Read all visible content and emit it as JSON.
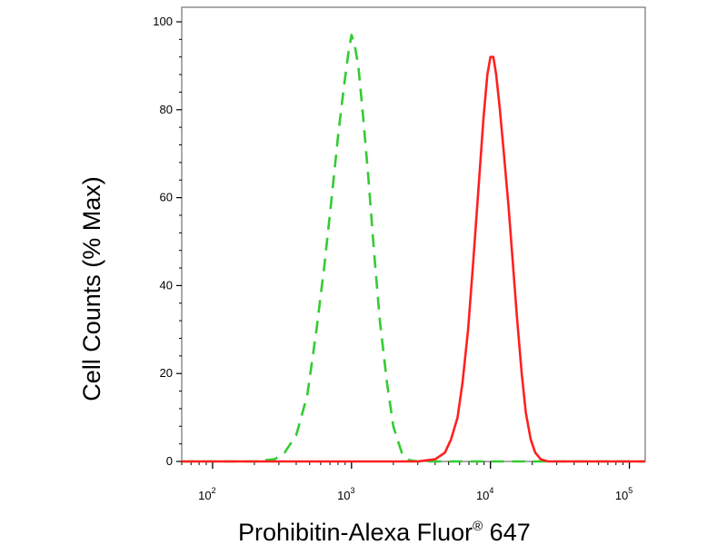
{
  "chart_data": {
    "type": "line",
    "xlabel": "Prohibitin-Alexa Fluor",
    "xlabel_superscript": "®",
    "xlabel_suffix": " 647",
    "ylabel": "Cell Counts (% Max)",
    "xscale": "log",
    "xlim": [
      60,
      130000
    ],
    "ylim": [
      0,
      100
    ],
    "x_ticks": [
      {
        "base": "10",
        "exp": "2",
        "value": 100
      },
      {
        "base": "10",
        "exp": "3",
        "value": 1000
      },
      {
        "base": "10",
        "exp": "4",
        "value": 10000
      },
      {
        "base": "10",
        "exp": "5",
        "value": 100000
      }
    ],
    "y_ticks": [
      {
        "label": "0",
        "value": 0
      },
      {
        "label": "20",
        "value": 20
      },
      {
        "label": "40",
        "value": 40
      },
      {
        "label": "60",
        "value": 60
      },
      {
        "label": "80",
        "value": 80
      },
      {
        "label": "100",
        "value": 100
      }
    ],
    "grid": false,
    "legend": "none",
    "series": [
      {
        "style": "dashed",
        "color": "#33cc33",
        "points": [
          [
            60,
            0
          ],
          [
            200,
            0
          ],
          [
            280,
            0.5
          ],
          [
            330,
            2
          ],
          [
            400,
            6
          ],
          [
            480,
            15
          ],
          [
            560,
            30
          ],
          [
            640,
            45
          ],
          [
            720,
            60
          ],
          [
            800,
            74
          ],
          [
            880,
            85
          ],
          [
            950,
            93
          ],
          [
            1000,
            97
          ],
          [
            1050,
            95
          ],
          [
            1120,
            90
          ],
          [
            1200,
            80
          ],
          [
            1320,
            65
          ],
          [
            1450,
            48
          ],
          [
            1600,
            32
          ],
          [
            1800,
            18
          ],
          [
            2000,
            8
          ],
          [
            2300,
            2
          ],
          [
            2600,
            0.3
          ],
          [
            3000,
            0
          ],
          [
            130000,
            0
          ]
        ]
      },
      {
        "style": "solid",
        "color": "#ff2020",
        "points": [
          [
            60,
            0
          ],
          [
            3000,
            0
          ],
          [
            4000,
            0.5
          ],
          [
            4700,
            2
          ],
          [
            5200,
            5
          ],
          [
            5800,
            10
          ],
          [
            6300,
            18
          ],
          [
            6900,
            30
          ],
          [
            7500,
            45
          ],
          [
            8200,
            62
          ],
          [
            8900,
            78
          ],
          [
            9500,
            88
          ],
          [
            10000,
            92
          ],
          [
            10500,
            92
          ],
          [
            11000,
            88
          ],
          [
            11700,
            80
          ],
          [
            12500,
            70
          ],
          [
            13500,
            58
          ],
          [
            14500,
            45
          ],
          [
            15500,
            33
          ],
          [
            16800,
            20
          ],
          [
            18000,
            11
          ],
          [
            19500,
            5
          ],
          [
            21000,
            2
          ],
          [
            23000,
            0.5
          ],
          [
            26000,
            0
          ],
          [
            130000,
            0
          ]
        ]
      }
    ]
  }
}
